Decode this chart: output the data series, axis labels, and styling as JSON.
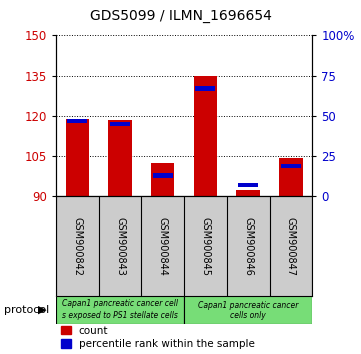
{
  "title": "GDS5099 / ILMN_1696654",
  "samples": [
    "GSM900842",
    "GSM900843",
    "GSM900844",
    "GSM900845",
    "GSM900846",
    "GSM900847"
  ],
  "counts": [
    119.0,
    118.5,
    102.5,
    135.0,
    92.5,
    104.5
  ],
  "percentile_ranks": [
    47,
    45,
    13,
    67,
    7,
    19
  ],
  "y_min": 90,
  "y_max": 150,
  "y_ticks": [
    90,
    105,
    120,
    135,
    150
  ],
  "right_y_ticks": [
    0,
    25,
    50,
    75,
    100
  ],
  "right_y_labels": [
    "0",
    "25",
    "50",
    "75",
    "100%"
  ],
  "bar_color": "#cc0000",
  "percentile_color": "#0000cc",
  "group1_label_line1": "Capan1 pancreatic cancer cell",
  "group1_label_line2": "s exposed to PS1 stellate cells",
  "group2_label_line1": "Capan1 pancreatic cancer",
  "group2_label_line2": "cells only",
  "legend_count_color": "#cc0000",
  "legend_percentile_color": "#0000cc",
  "background_color": "#ffffff",
  "plot_bg": "#ffffff",
  "tick_label_color_left": "#cc0000",
  "tick_label_color_right": "#0000cc",
  "bar_width": 0.55,
  "protocol_bg": "#77dd77",
  "sample_label_bg": "#cccccc"
}
